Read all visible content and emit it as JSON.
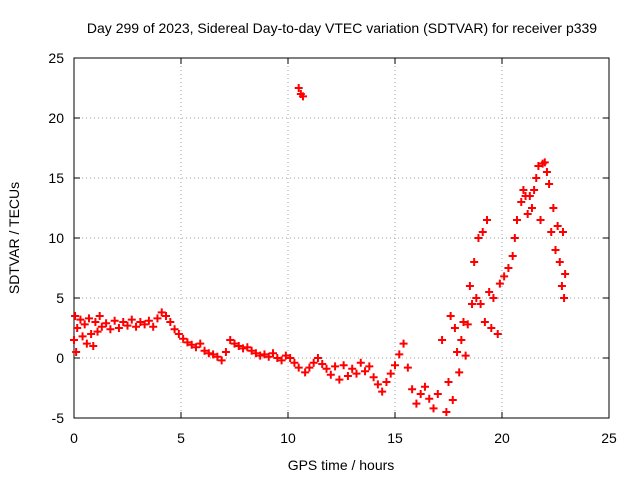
{
  "chart_data": {
    "type": "scatter",
    "title": "Day 299 of 2023, Sidereal Day-to-day VTEC variation (SDTVAR) for receiver p339",
    "xlabel": "GPS time / hours",
    "ylabel": "SDTVAR / TECUs",
    "xlim": [
      0,
      25
    ],
    "ylim": [
      -5,
      25
    ],
    "xticks": [
      0,
      5,
      10,
      15,
      20,
      25
    ],
    "yticks": [
      -5,
      0,
      5,
      10,
      15,
      20,
      25
    ],
    "grid": true,
    "marker": "+",
    "series_color": "#ff0000",
    "series": [
      {
        "name": "SDTVAR",
        "points": [
          [
            0.0,
            1.5
          ],
          [
            0.05,
            3.5
          ],
          [
            0.1,
            0.5
          ],
          [
            0.15,
            2.5
          ],
          [
            0.3,
            3.2
          ],
          [
            0.4,
            1.8
          ],
          [
            0.5,
            2.8
          ],
          [
            0.6,
            1.2
          ],
          [
            0.7,
            3.3
          ],
          [
            0.8,
            2.0
          ],
          [
            0.9,
            1.0
          ],
          [
            1.0,
            3.0
          ],
          [
            1.1,
            2.2
          ],
          [
            1.2,
            3.5
          ],
          [
            1.3,
            2.6
          ],
          [
            1.5,
            2.9
          ],
          [
            1.7,
            2.4
          ],
          [
            1.9,
            3.1
          ],
          [
            2.1,
            2.5
          ],
          [
            2.3,
            3.0
          ],
          [
            2.5,
            2.7
          ],
          [
            2.7,
            3.2
          ],
          [
            2.9,
            2.6
          ],
          [
            3.1,
            3.0
          ],
          [
            3.3,
            2.8
          ],
          [
            3.5,
            3.1
          ],
          [
            3.7,
            2.6
          ],
          [
            3.9,
            3.3
          ],
          [
            4.1,
            3.8
          ],
          [
            4.3,
            3.5
          ],
          [
            4.5,
            3.0
          ],
          [
            4.7,
            2.4
          ],
          [
            4.9,
            2.0
          ],
          [
            5.1,
            1.6
          ],
          [
            5.3,
            1.3
          ],
          [
            5.5,
            1.1
          ],
          [
            5.7,
            0.9
          ],
          [
            5.9,
            1.2
          ],
          [
            6.1,
            0.6
          ],
          [
            6.3,
            0.4
          ],
          [
            6.5,
            0.3
          ],
          [
            6.7,
            0.1
          ],
          [
            6.9,
            -0.2
          ],
          [
            7.1,
            0.5
          ],
          [
            7.3,
            1.5
          ],
          [
            7.5,
            1.2
          ],
          [
            7.7,
            1.0
          ],
          [
            7.9,
            0.8
          ],
          [
            8.1,
            0.9
          ],
          [
            8.3,
            0.6
          ],
          [
            8.5,
            0.4
          ],
          [
            8.7,
            0.2
          ],
          [
            8.9,
            0.3
          ],
          [
            9.1,
            0.1
          ],
          [
            9.3,
            0.4
          ],
          [
            9.5,
            0.0
          ],
          [
            9.7,
            -0.2
          ],
          [
            9.9,
            0.2
          ],
          [
            10.1,
            0.0
          ],
          [
            10.3,
            -0.4
          ],
          [
            10.5,
            -0.8
          ],
          [
            10.5,
            22.5
          ],
          [
            10.6,
            22.0
          ],
          [
            10.7,
            21.8
          ],
          [
            10.8,
            -1.2
          ],
          [
            11.0,
            -0.8
          ],
          [
            11.2,
            -0.4
          ],
          [
            11.4,
            0.0
          ],
          [
            11.6,
            -0.5
          ],
          [
            11.8,
            -0.9
          ],
          [
            12.0,
            -1.4
          ],
          [
            12.2,
            -0.7
          ],
          [
            12.4,
            -1.8
          ],
          [
            12.6,
            -0.6
          ],
          [
            12.8,
            -1.5
          ],
          [
            13.0,
            -0.9
          ],
          [
            13.2,
            -1.3
          ],
          [
            13.4,
            -0.4
          ],
          [
            13.6,
            -1.1
          ],
          [
            13.8,
            -0.7
          ],
          [
            14.0,
            -1.6
          ],
          [
            14.2,
            -2.2
          ],
          [
            14.4,
            -2.8
          ],
          [
            14.6,
            -2.0
          ],
          [
            14.8,
            -1.3
          ],
          [
            15.0,
            -0.6
          ],
          [
            15.2,
            0.3
          ],
          [
            15.4,
            1.2
          ],
          [
            15.6,
            -0.8
          ],
          [
            15.8,
            -2.6
          ],
          [
            16.0,
            -3.8
          ],
          [
            16.2,
            -3.0
          ],
          [
            16.4,
            -2.4
          ],
          [
            16.6,
            -3.4
          ],
          [
            16.8,
            -4.2
          ],
          [
            17.0,
            -3.0
          ],
          [
            17.2,
            1.5
          ],
          [
            17.4,
            -4.5
          ],
          [
            17.5,
            -2.0
          ],
          [
            17.6,
            3.5
          ],
          [
            17.7,
            -3.5
          ],
          [
            17.8,
            2.5
          ],
          [
            17.9,
            0.5
          ],
          [
            18.0,
            -1.2
          ],
          [
            18.1,
            1.5
          ],
          [
            18.2,
            3.0
          ],
          [
            18.3,
            0.2
          ],
          [
            18.4,
            2.8
          ],
          [
            18.5,
            6.0
          ],
          [
            18.6,
            4.5
          ],
          [
            18.7,
            8.0
          ],
          [
            18.8,
            5.0
          ],
          [
            18.9,
            10.0
          ],
          [
            19.0,
            4.5
          ],
          [
            19.1,
            10.5
          ],
          [
            19.2,
            3.0
          ],
          [
            19.3,
            11.5
          ],
          [
            19.4,
            5.5
          ],
          [
            19.5,
            2.5
          ],
          [
            19.6,
            5.0
          ],
          [
            19.8,
            2.0
          ],
          [
            19.9,
            6.2
          ],
          [
            20.1,
            6.8
          ],
          [
            20.3,
            7.5
          ],
          [
            20.5,
            8.5
          ],
          [
            20.6,
            10.0
          ],
          [
            20.7,
            11.5
          ],
          [
            20.9,
            13.0
          ],
          [
            21.0,
            14.0
          ],
          [
            21.1,
            13.5
          ],
          [
            21.2,
            12.0
          ],
          [
            21.3,
            13.5
          ],
          [
            21.4,
            12.5
          ],
          [
            21.5,
            14.0
          ],
          [
            21.6,
            15.0
          ],
          [
            21.7,
            16.0
          ],
          [
            21.8,
            11.5
          ],
          [
            21.9,
            16.2
          ],
          [
            22.0,
            16.3
          ],
          [
            22.1,
            15.5
          ],
          [
            22.2,
            14.5
          ],
          [
            22.3,
            10.5
          ],
          [
            22.4,
            12.5
          ],
          [
            22.5,
            9.0
          ],
          [
            22.6,
            11.0
          ],
          [
            22.7,
            8.0
          ],
          [
            22.8,
            6.0
          ],
          [
            22.85,
            10.5
          ],
          [
            22.9,
            5.0
          ],
          [
            22.95,
            7.0
          ]
        ]
      }
    ]
  }
}
